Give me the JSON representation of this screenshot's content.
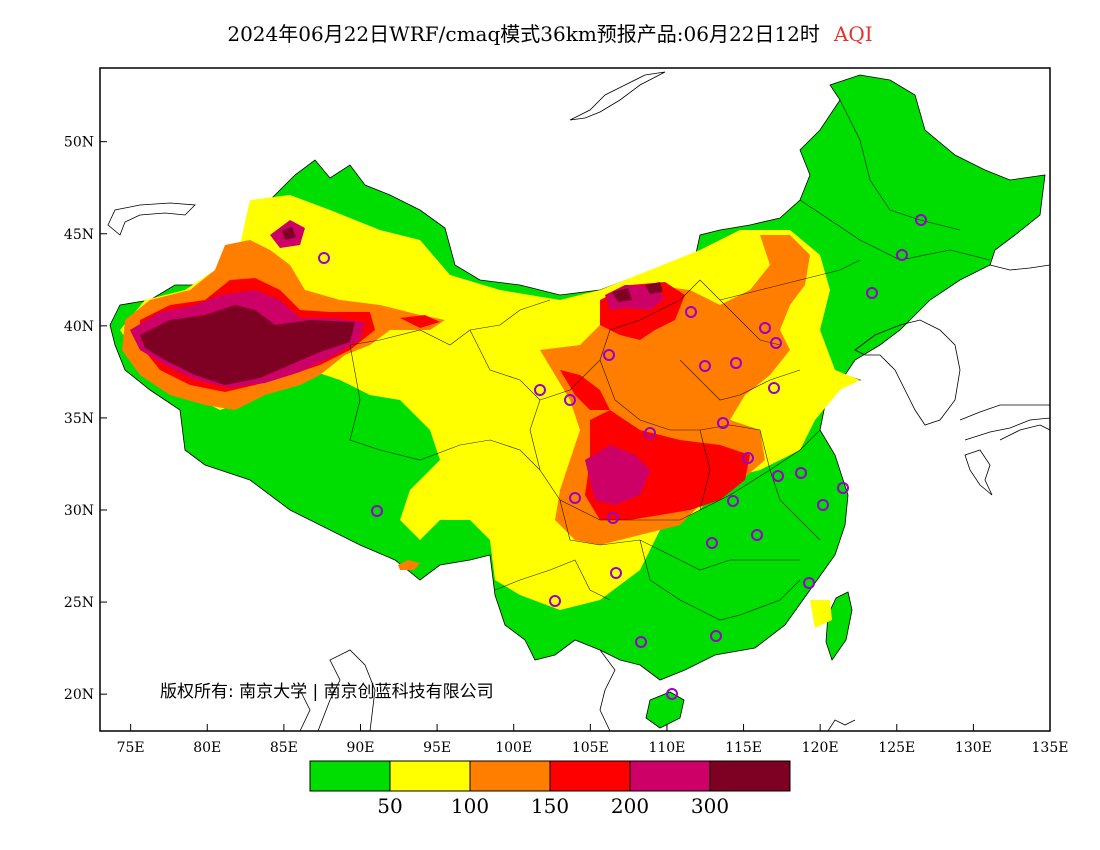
{
  "title": {
    "main": "2024年06月22日WRF/cmaq模式36km预报产品:06月22日12时",
    "variable": "AQI"
  },
  "map": {
    "lon_ticks": [
      "75E",
      "80E",
      "85E",
      "90E",
      "95E",
      "100E",
      "105E",
      "110E",
      "115E",
      "120E",
      "125E",
      "130E",
      "135E"
    ],
    "lat_ticks": [
      "20N",
      "25N",
      "30N",
      "35N",
      "40N",
      "45N",
      "50N"
    ],
    "lon_range": [
      73,
      135
    ],
    "lat_range": [
      18,
      54
    ],
    "copyright": "版权所有: 南京大学 | 南京创蓝科技有限公司"
  },
  "colorbar": {
    "colors": [
      "#00dd00",
      "#ffff00",
      "#ff7e00",
      "#ff0000",
      "#cc0066",
      "#7e0023"
    ],
    "labels": [
      "50",
      "100",
      "150",
      "200",
      "300"
    ]
  },
  "legend_icon": "circle-station-marker",
  "station_color": "#9900cc"
}
